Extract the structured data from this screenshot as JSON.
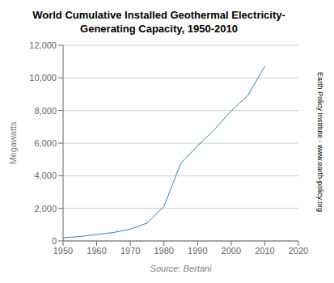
{
  "chart_data": {
    "type": "line",
    "title": "World Cumulative Installed Geothermal Electricity-\nGenerating Capacity, 1950-2010",
    "xlabel": "Source: Bertani",
    "ylabel": "Megawatts",
    "annotations": [
      "Earth Policy Institute - www.earth-policy.org"
    ],
    "x": [
      1950,
      1955,
      1960,
      1965,
      1970,
      1975,
      1980,
      1985,
      1990,
      1995,
      2000,
      2005,
      2010
    ],
    "values": [
      200,
      270,
      390,
      520,
      720,
      1100,
      2110,
      4764,
      5832,
      6833,
      7974,
      8933,
      10715
    ],
    "xlim": [
      1950,
      2020
    ],
    "xticks": [
      1950,
      1960,
      1970,
      1980,
      1990,
      2000,
      2010,
      2020
    ],
    "ylim": [
      0,
      12000
    ],
    "yticks": [
      0,
      {
        "value": 2000,
        "label": "2,000"
      },
      {
        "value": 4000,
        "label": "4,000"
      },
      {
        "value": 6000,
        "label": "6,000"
      },
      {
        "value": 8000,
        "label": "8,000"
      },
      {
        "value": 10000,
        "label": "10,000"
      },
      {
        "value": 12000,
        "label": "12,000"
      }
    ],
    "grid": true
  }
}
